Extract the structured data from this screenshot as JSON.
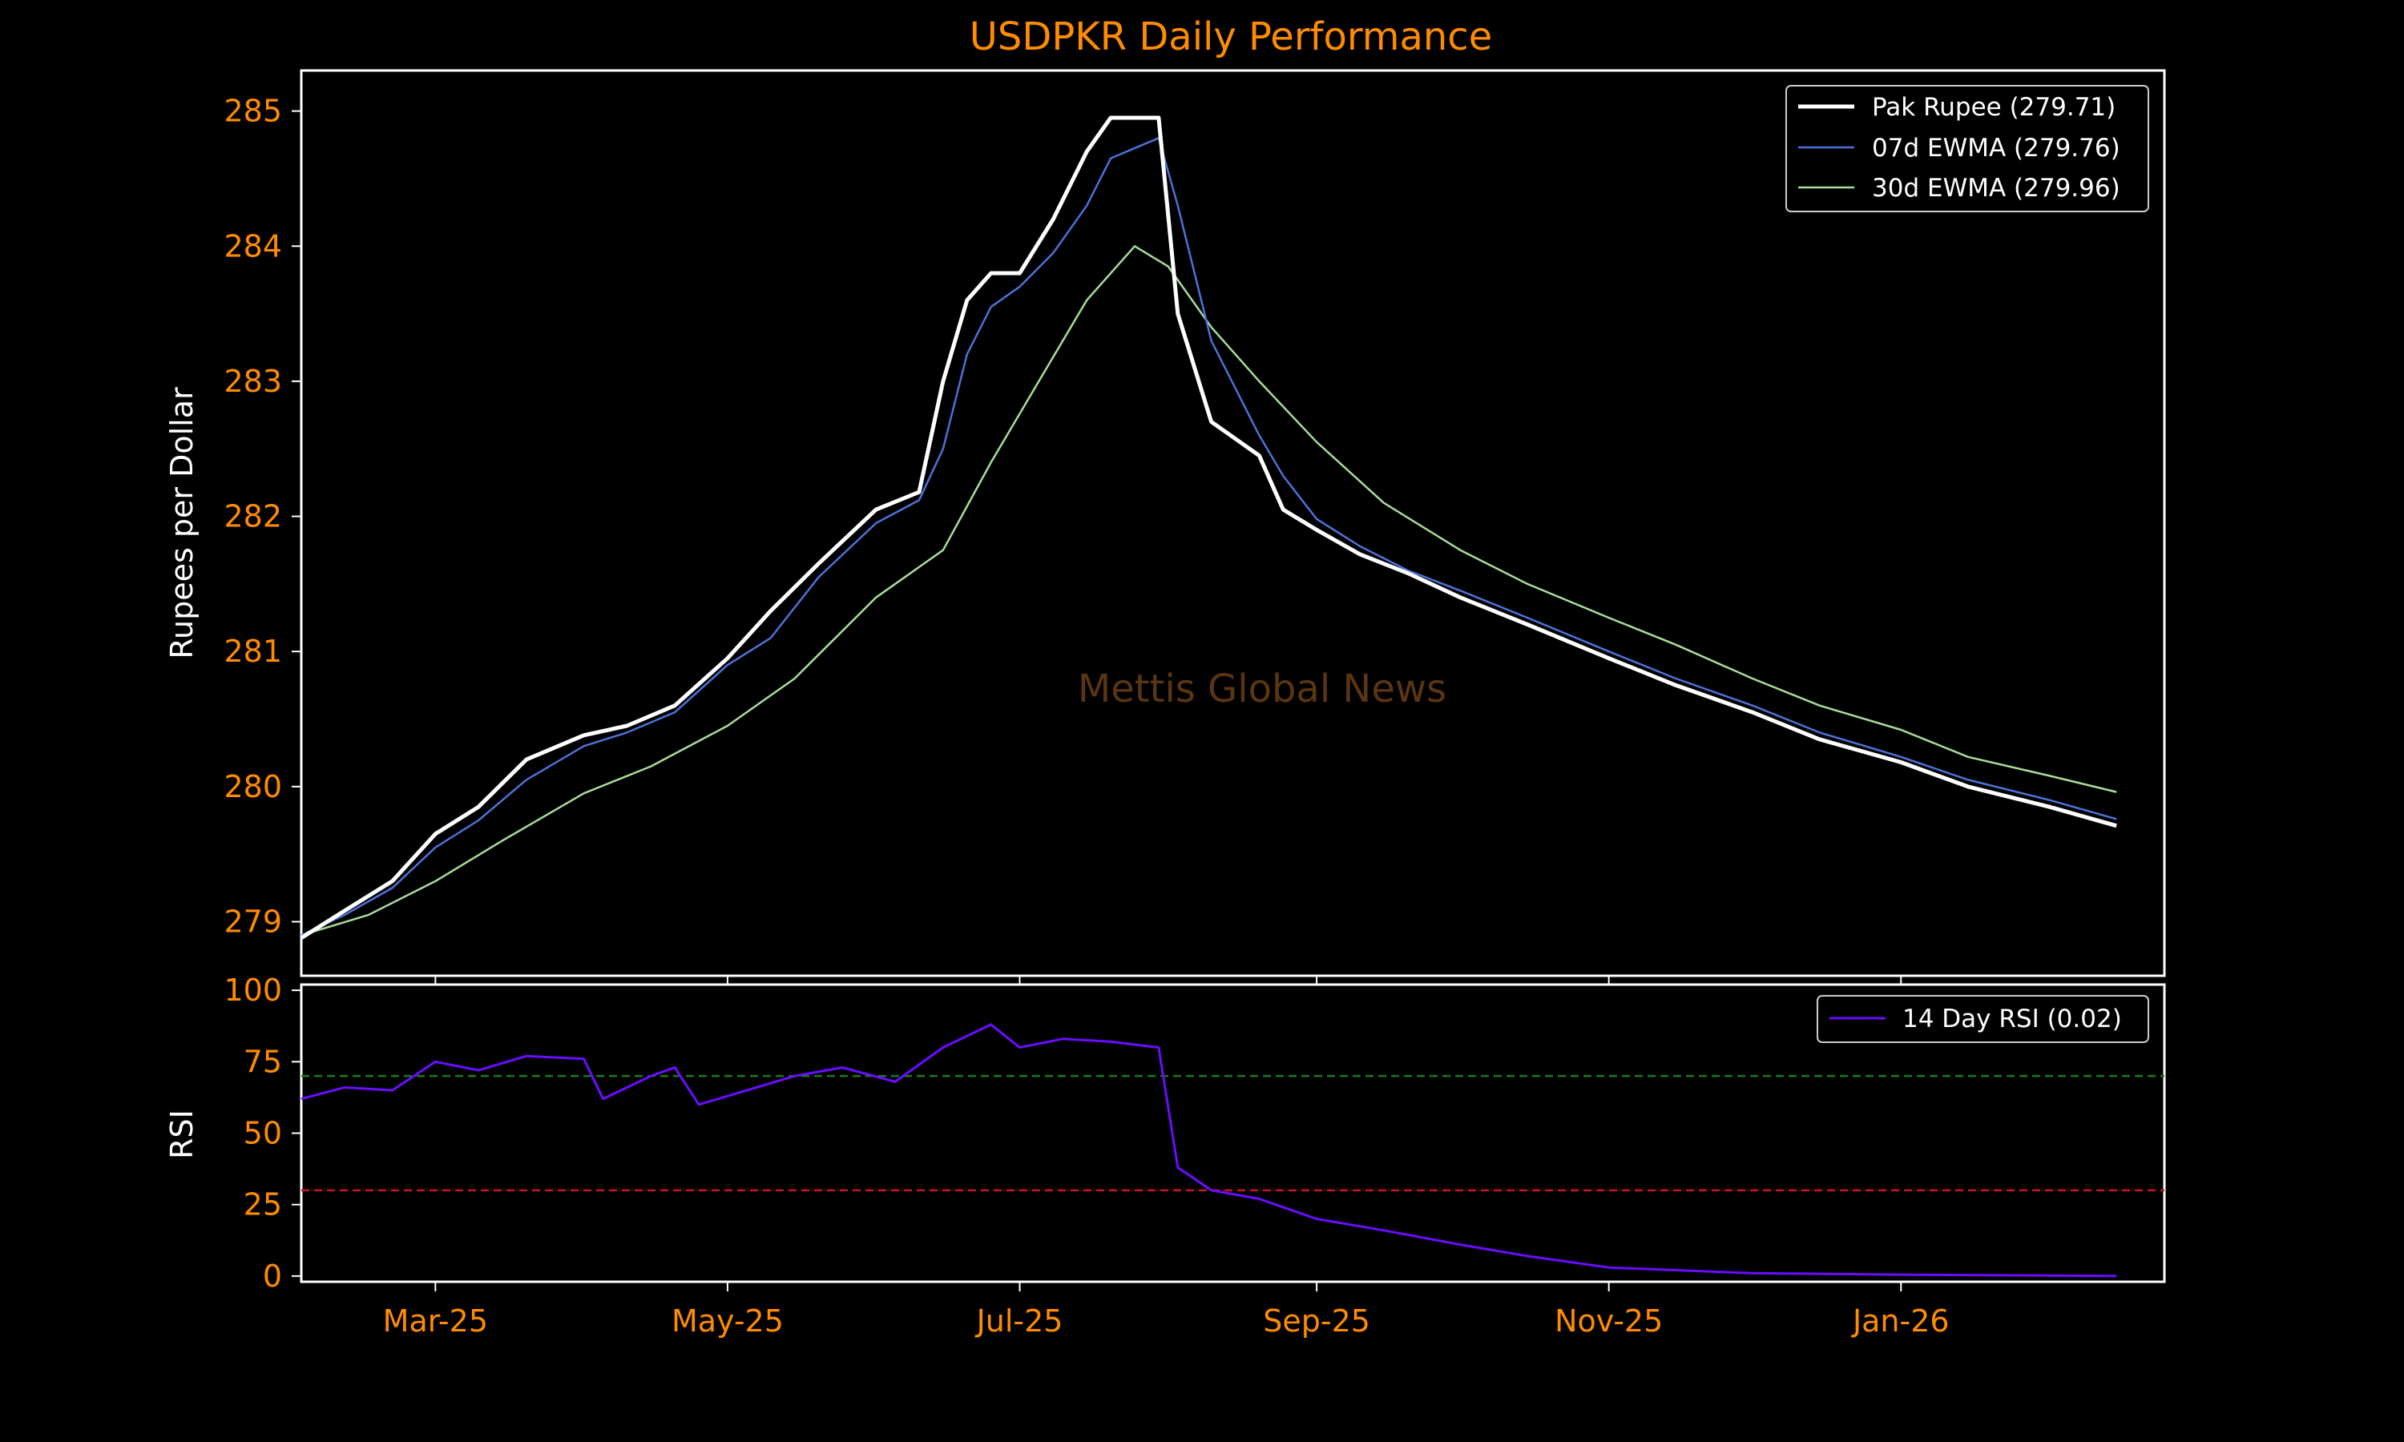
{
  "colors": {
    "background": "#000000",
    "accent_text": "#ff8c00",
    "frame": "#ffffff",
    "price": "#ffffff",
    "ewma7": "#4c72d9",
    "ewma30": "#a8dd9a",
    "rsi": "#6a0dff",
    "overbought": "#1c7a1c",
    "oversold": "#d0102a"
  },
  "watermark": "Mettis Global News",
  "chart_data": [
    {
      "type": "line",
      "title": "USDPKR Daily Performance",
      "xlabel": "",
      "ylabel": "Rupees per Dollar",
      "x_range": [
        "2025-02-01",
        "2026-02-25"
      ],
      "ylim": [
        278.6,
        285.3
      ],
      "yticks": [
        279,
        280,
        281,
        282,
        283,
        284,
        285
      ],
      "ytick_labels": [
        "279",
        "280",
        "281",
        "282",
        "283",
        "284",
        "285"
      ],
      "legend_position": "top-right",
      "grid": false,
      "series": [
        {
          "name": "Pak Rupee (279.71)",
          "points": [
            [
              "2025-02-01",
              278.88
            ],
            [
              "2025-02-10",
              279.08
            ],
            [
              "2025-02-20",
              279.3
            ],
            [
              "2025-03-01",
              279.65
            ],
            [
              "2025-03-10",
              279.85
            ],
            [
              "2025-03-20",
              280.2
            ],
            [
              "2025-04-01",
              280.38
            ],
            [
              "2025-04-10",
              280.45
            ],
            [
              "2025-04-20",
              280.6
            ],
            [
              "2025-05-01",
              280.95
            ],
            [
              "2025-05-10",
              281.3
            ],
            [
              "2025-05-20",
              281.65
            ],
            [
              "2025-06-01",
              282.05
            ],
            [
              "2025-06-10",
              282.18
            ],
            [
              "2025-06-15",
              283.0
            ],
            [
              "2025-06-20",
              283.6
            ],
            [
              "2025-06-25",
              283.8
            ],
            [
              "2025-07-01",
              283.8
            ],
            [
              "2025-07-08",
              284.2
            ],
            [
              "2025-07-15",
              284.7
            ],
            [
              "2025-07-20",
              284.95
            ],
            [
              "2025-07-30",
              284.95
            ],
            [
              "2025-08-03",
              283.5
            ],
            [
              "2025-08-10",
              282.7
            ],
            [
              "2025-08-20",
              282.45
            ],
            [
              "2025-08-25",
              282.05
            ],
            [
              "2025-09-01",
              281.9
            ],
            [
              "2025-09-10",
              281.72
            ],
            [
              "2025-09-20",
              281.58
            ],
            [
              "2025-10-01",
              281.4
            ],
            [
              "2025-10-15",
              281.2
            ],
            [
              "2025-11-01",
              280.95
            ],
            [
              "2025-11-15",
              280.75
            ],
            [
              "2025-12-01",
              280.55
            ],
            [
              "2025-12-15",
              280.35
            ],
            [
              "2026-01-01",
              280.18
            ],
            [
              "2026-01-15",
              280.0
            ],
            [
              "2026-02-01",
              279.85
            ],
            [
              "2026-02-15",
              279.71
            ]
          ]
        },
        {
          "name": "07d EWMA (279.76)",
          "points": [
            [
              "2025-02-01",
              278.9
            ],
            [
              "2025-02-10",
              279.05
            ],
            [
              "2025-02-20",
              279.25
            ],
            [
              "2025-03-01",
              279.55
            ],
            [
              "2025-03-10",
              279.75
            ],
            [
              "2025-03-20",
              280.05
            ],
            [
              "2025-04-01",
              280.3
            ],
            [
              "2025-04-10",
              280.4
            ],
            [
              "2025-04-20",
              280.55
            ],
            [
              "2025-05-01",
              280.9
            ],
            [
              "2025-05-10",
              281.1
            ],
            [
              "2025-05-20",
              281.55
            ],
            [
              "2025-06-01",
              281.95
            ],
            [
              "2025-06-10",
              282.12
            ],
            [
              "2025-06-15",
              282.5
            ],
            [
              "2025-06-20",
              283.2
            ],
            [
              "2025-06-25",
              283.55
            ],
            [
              "2025-07-01",
              283.7
            ],
            [
              "2025-07-08",
              283.95
            ],
            [
              "2025-07-15",
              284.3
            ],
            [
              "2025-07-20",
              284.65
            ],
            [
              "2025-07-30",
              284.8
            ],
            [
              "2025-08-03",
              284.3
            ],
            [
              "2025-08-10",
              283.3
            ],
            [
              "2025-08-20",
              282.6
            ],
            [
              "2025-08-25",
              282.3
            ],
            [
              "2025-09-01",
              281.98
            ],
            [
              "2025-09-10",
              281.78
            ],
            [
              "2025-09-20",
              281.6
            ],
            [
              "2025-10-01",
              281.45
            ],
            [
              "2025-10-15",
              281.25
            ],
            [
              "2025-11-01",
              281.0
            ],
            [
              "2025-11-15",
              280.8
            ],
            [
              "2025-12-01",
              280.6
            ],
            [
              "2025-12-15",
              280.4
            ],
            [
              "2026-01-01",
              280.22
            ],
            [
              "2026-01-15",
              280.05
            ],
            [
              "2026-02-01",
              279.9
            ],
            [
              "2026-02-15",
              279.76
            ]
          ]
        },
        {
          "name": "30d EWMA (279.96)",
          "points": [
            [
              "2025-02-01",
              278.9
            ],
            [
              "2025-02-15",
              279.05
            ],
            [
              "2025-03-01",
              279.3
            ],
            [
              "2025-03-15",
              279.6
            ],
            [
              "2025-04-01",
              279.95
            ],
            [
              "2025-04-15",
              280.15
            ],
            [
              "2025-05-01",
              280.45
            ],
            [
              "2025-05-15",
              280.8
            ],
            [
              "2025-06-01",
              281.4
            ],
            [
              "2025-06-15",
              281.75
            ],
            [
              "2025-06-25",
              282.4
            ],
            [
              "2025-07-05",
              283.0
            ],
            [
              "2025-07-15",
              283.6
            ],
            [
              "2025-07-25",
              284.0
            ],
            [
              "2025-08-01",
              283.85
            ],
            [
              "2025-08-10",
              283.4
            ],
            [
              "2025-08-20",
              283.0
            ],
            [
              "2025-09-01",
              282.55
            ],
            [
              "2025-09-15",
              282.1
            ],
            [
              "2025-10-01",
              281.75
            ],
            [
              "2025-10-15",
              281.5
            ],
            [
              "2025-11-01",
              281.25
            ],
            [
              "2025-11-15",
              281.05
            ],
            [
              "2025-12-01",
              280.8
            ],
            [
              "2025-12-15",
              280.6
            ],
            [
              "2026-01-01",
              280.42
            ],
            [
              "2026-01-15",
              280.22
            ],
            [
              "2026-02-01",
              280.08
            ],
            [
              "2026-02-15",
              279.96
            ]
          ]
        }
      ]
    },
    {
      "type": "line",
      "ylabel": "RSI",
      "xlabel": "",
      "x_range": [
        "2025-02-01",
        "2026-02-25"
      ],
      "ylim": [
        -2,
        102
      ],
      "yticks": [
        0,
        25,
        50,
        75,
        100
      ],
      "ytick_labels": [
        "0",
        "25",
        "50",
        "75",
        "100"
      ],
      "xticks": [
        "2025-03-01",
        "2025-05-01",
        "2025-07-01",
        "2025-09-01",
        "2025-11-01",
        "2026-01-01"
      ],
      "xtick_labels": [
        "Mar-25",
        "May-25",
        "Jul-25",
        "Sep-25",
        "Nov-25",
        "Jan-26"
      ],
      "reference_lines": [
        70,
        30
      ],
      "legend_position": "top-right",
      "grid": false,
      "series": [
        {
          "name": "14 Day RSI (0.02)",
          "points": [
            [
              "2025-02-01",
              62
            ],
            [
              "2025-02-10",
              66
            ],
            [
              "2025-02-20",
              65
            ],
            [
              "2025-03-01",
              75
            ],
            [
              "2025-03-10",
              72
            ],
            [
              "2025-03-20",
              77
            ],
            [
              "2025-04-01",
              76
            ],
            [
              "2025-04-05",
              62
            ],
            [
              "2025-04-15",
              70
            ],
            [
              "2025-04-20",
              73
            ],
            [
              "2025-04-25",
              60
            ],
            [
              "2025-05-05",
              65
            ],
            [
              "2025-05-15",
              70
            ],
            [
              "2025-05-25",
              73
            ],
            [
              "2025-06-05",
              68
            ],
            [
              "2025-06-15",
              80
            ],
            [
              "2025-06-25",
              88
            ],
            [
              "2025-07-01",
              80
            ],
            [
              "2025-07-10",
              83
            ],
            [
              "2025-07-20",
              82
            ],
            [
              "2025-07-30",
              80
            ],
            [
              "2025-08-03",
              38
            ],
            [
              "2025-08-10",
              30
            ],
            [
              "2025-08-20",
              27
            ],
            [
              "2025-09-01",
              20
            ],
            [
              "2025-09-15",
              16
            ],
            [
              "2025-10-01",
              11
            ],
            [
              "2025-10-15",
              7
            ],
            [
              "2025-11-01",
              3
            ],
            [
              "2025-12-01",
              1
            ],
            [
              "2026-01-01",
              0.5
            ],
            [
              "2026-02-15",
              0.02
            ]
          ]
        }
      ]
    }
  ]
}
